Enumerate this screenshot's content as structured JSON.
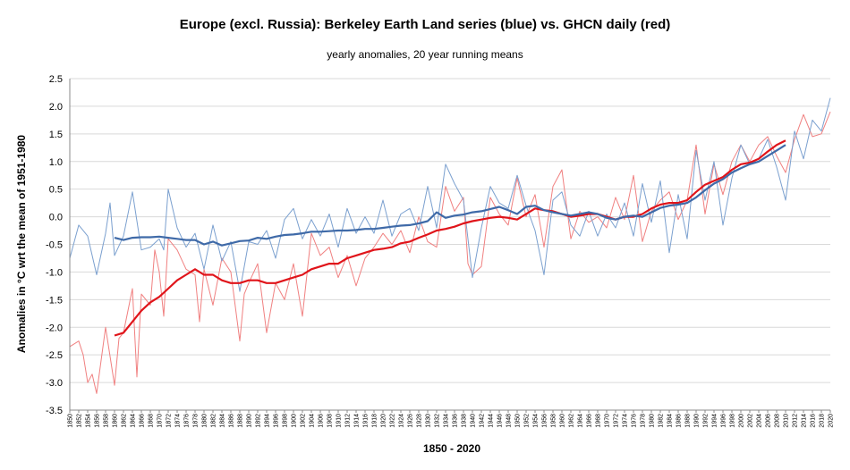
{
  "chart_data": {
    "type": "line",
    "title": "Europe (excl. Russia): Berkeley Earth Land series (blue) vs. GHCN daily (red)",
    "subtitle": "yearly anomalies, 20 year running means",
    "xlabel": "1850 - 2020",
    "ylabel": "Anomalies in °C wrt the mean of 1951-1980",
    "xlim": [
      1850,
      2020
    ],
    "ylim": [
      -3.5,
      2.5
    ],
    "ytick_step": 0.5,
    "ytick_labels": [
      "2.5",
      "2.0",
      "1.5",
      "1.0",
      "0.5",
      "0.0",
      "-0.5",
      "-1.0",
      "-1.5",
      "-2.0",
      "-2.5",
      "-3.0",
      "-3.5"
    ],
    "xtick_labels": [
      "1850",
      "1852",
      "1854",
      "1856",
      "1858",
      "1860",
      "1862",
      "1864",
      "1866",
      "1868",
      "1870",
      "1872",
      "1874",
      "1876",
      "1878",
      "1880",
      "1882",
      "1884",
      "1886",
      "1888",
      "1890",
      "1892",
      "1894",
      "1896",
      "1898",
      "1900",
      "1902",
      "1904",
      "1906",
      "1908",
      "1910",
      "1912",
      "1914",
      "1916",
      "1918",
      "1920",
      "1922",
      "1924",
      "1926",
      "1928",
      "1930",
      "1932",
      "1934",
      "1936",
      "1938",
      "1940",
      "1942",
      "1944",
      "1946",
      "1948",
      "1950",
      "1952",
      "1954",
      "1956",
      "1958",
      "1960",
      "1962",
      "1964",
      "1966",
      "1968",
      "1970",
      "1972",
      "1974",
      "1976",
      "1978",
      "1980",
      "1982",
      "1984",
      "1986",
      "1988",
      "1990",
      "1992",
      "1994",
      "1996",
      "1998",
      "2000",
      "2002",
      "2004",
      "2006",
      "2008",
      "2010",
      "2012",
      "2014",
      "2016",
      "2018",
      "2020"
    ],
    "grid": "horizontal",
    "colors": {
      "blue_yearly": "#7ba0cf",
      "blue_running": "#3f6aa8",
      "red_yearly": "#f08080",
      "red_running": "#e0141a",
      "grid": "#d9d9d9",
      "axis": "#888888"
    },
    "series": [
      {
        "x": [
          1850,
          1852,
          1854,
          1856,
          1858,
          1859,
          1860,
          1862,
          1864,
          1866,
          1868,
          1870,
          1871,
          1872,
          1874,
          1876,
          1878,
          1880,
          1882,
          1884,
          1886,
          1888,
          1890,
          1892,
          1894,
          1896,
          1898,
          1900,
          1902,
          1904,
          1906,
          1908,
          1910,
          1912,
          1914,
          1916,
          1918,
          1920,
          1922,
          1924,
          1926,
          1928,
          1930,
          1932,
          1934,
          1936,
          1938,
          1940,
          1942,
          1944,
          1946,
          1948,
          1950,
          1952,
          1954,
          1956,
          1958,
          1960,
          1962,
          1964,
          1966,
          1968,
          1970,
          1972,
          1974,
          1976,
          1978,
          1980,
          1982,
          1984,
          1986,
          1988,
          1990,
          1992,
          1994,
          1996,
          1998,
          2000,
          2002,
          2004,
          2006,
          2008,
          2010,
          2012,
          2014,
          2016,
          2018,
          2020
        ],
        "values": [
          -0.75,
          -0.15,
          -0.35,
          -1.05,
          -0.3,
          0.25,
          -0.7,
          -0.35,
          0.45,
          -0.6,
          -0.55,
          -0.4,
          -0.6,
          0.5,
          -0.2,
          -0.55,
          -0.3,
          -0.95,
          -0.15,
          -0.8,
          -0.45,
          -1.35,
          -0.45,
          -0.5,
          -0.25,
          -0.75,
          -0.05,
          0.15,
          -0.4,
          -0.05,
          -0.35,
          0.05,
          -0.55,
          0.15,
          -0.3,
          0.0,
          -0.3,
          0.3,
          -0.35,
          0.05,
          0.15,
          -0.25,
          0.55,
          -0.2,
          0.95,
          0.6,
          0.3,
          -1.1,
          -0.2,
          0.55,
          0.25,
          0.15,
          0.75,
          0.2,
          -0.25,
          -1.05,
          0.3,
          0.45,
          -0.15,
          -0.35,
          0.1,
          -0.35,
          0.05,
          -0.2,
          0.25,
          -0.35,
          0.6,
          -0.1,
          0.65,
          -0.65,
          0.4,
          -0.4,
          1.2,
          0.3,
          1.0,
          -0.15,
          0.7,
          1.3,
          0.95,
          1.05,
          1.4,
          0.9,
          0.3,
          1.55,
          1.05,
          1.75,
          1.55,
          2.15
        ]
      },
      {
        "x": [
          1860,
          1862,
          1864,
          1866,
          1868,
          1870,
          1872,
          1874,
          1876,
          1878,
          1880,
          1882,
          1884,
          1886,
          1888,
          1890,
          1892,
          1894,
          1896,
          1898,
          1900,
          1902,
          1904,
          1906,
          1908,
          1910,
          1912,
          1914,
          1916,
          1918,
          1920,
          1922,
          1924,
          1926,
          1928,
          1930,
          1932,
          1934,
          1936,
          1938,
          1940,
          1942,
          1944,
          1946,
          1948,
          1950,
          1952,
          1954,
          1956,
          1958,
          1960,
          1962,
          1964,
          1966,
          1968,
          1970,
          1972,
          1974,
          1976,
          1978,
          1980,
          1982,
          1984,
          1986,
          1988,
          1990,
          1992,
          1994,
          1996,
          1998,
          2000,
          2002,
          2004,
          2006,
          2008,
          2010
        ],
        "values": [
          -0.38,
          -0.42,
          -0.38,
          -0.37,
          -0.37,
          -0.36,
          -0.38,
          -0.4,
          -0.42,
          -0.42,
          -0.5,
          -0.45,
          -0.52,
          -0.48,
          -0.44,
          -0.43,
          -0.38,
          -0.4,
          -0.36,
          -0.33,
          -0.32,
          -0.3,
          -0.27,
          -0.27,
          -0.26,
          -0.25,
          -0.25,
          -0.24,
          -0.22,
          -0.22,
          -0.2,
          -0.18,
          -0.16,
          -0.15,
          -0.12,
          -0.08,
          0.08,
          -0.02,
          0.02,
          0.04,
          0.08,
          0.1,
          0.14,
          0.18,
          0.12,
          0.05,
          0.18,
          0.2,
          0.12,
          0.08,
          0.05,
          0.02,
          0.05,
          0.08,
          0.05,
          -0.02,
          -0.05,
          0.0,
          0.02,
          0.0,
          0.08,
          0.16,
          0.2,
          0.22,
          0.25,
          0.35,
          0.48,
          0.6,
          0.68,
          0.8,
          0.88,
          0.95,
          1.0,
          1.1,
          1.2,
          1.3
        ]
      },
      {
        "x": [
          1850,
          1852,
          1853,
          1854,
          1855,
          1856,
          1858,
          1860,
          1861,
          1862,
          1864,
          1865,
          1866,
          1868,
          1869,
          1870,
          1871,
          1872,
          1874,
          1876,
          1878,
          1879,
          1880,
          1882,
          1884,
          1886,
          1888,
          1889,
          1890,
          1892,
          1894,
          1896,
          1898,
          1900,
          1902,
          1904,
          1906,
          1908,
          1910,
          1912,
          1914,
          1916,
          1918,
          1920,
          1922,
          1924,
          1926,
          1928,
          1930,
          1932,
          1934,
          1936,
          1938,
          1939,
          1940,
          1942,
          1944,
          1946,
          1948,
          1950,
          1952,
          1954,
          1956,
          1958,
          1960,
          1962,
          1964,
          1966,
          1968,
          1970,
          1972,
          1974,
          1976,
          1978,
          1980,
          1982,
          1984,
          1986,
          1988,
          1990,
          1992,
          1994,
          1996,
          1998,
          2000,
          2002,
          2004,
          2006,
          2008,
          2010,
          2012,
          2014,
          2016,
          2018,
          2020
        ],
        "values": [
          -2.35,
          -2.25,
          -2.5,
          -3.0,
          -2.85,
          -3.2,
          -2.0,
          -3.05,
          -2.2,
          -2.1,
          -1.3,
          -2.9,
          -1.4,
          -1.6,
          -0.6,
          -1.0,
          -1.8,
          -0.4,
          -0.6,
          -0.95,
          -1.05,
          -1.9,
          -0.95,
          -1.6,
          -0.75,
          -1.0,
          -2.25,
          -1.4,
          -1.2,
          -0.85,
          -2.1,
          -1.2,
          -1.5,
          -0.85,
          -1.8,
          -0.3,
          -0.7,
          -0.55,
          -1.1,
          -0.7,
          -1.25,
          -0.75,
          -0.55,
          -0.3,
          -0.5,
          -0.25,
          -0.65,
          0.0,
          -0.45,
          -0.55,
          0.55,
          0.1,
          0.35,
          -0.85,
          -1.05,
          -0.9,
          0.35,
          0.05,
          -0.15,
          0.7,
          0.0,
          0.4,
          -0.55,
          0.55,
          0.85,
          -0.4,
          0.1,
          -0.1,
          0.0,
          -0.2,
          0.35,
          -0.05,
          0.75,
          -0.45,
          0.1,
          0.3,
          0.45,
          -0.05,
          0.3,
          1.3,
          0.05,
          0.95,
          0.4,
          1.0,
          1.3,
          1.0,
          1.3,
          1.45,
          1.1,
          0.8,
          1.4,
          1.85,
          1.45,
          1.5,
          1.9
        ]
      },
      {
        "x": [
          1860,
          1862,
          1864,
          1866,
          1868,
          1870,
          1872,
          1874,
          1876,
          1878,
          1880,
          1882,
          1884,
          1886,
          1888,
          1890,
          1892,
          1894,
          1896,
          1898,
          1900,
          1902,
          1904,
          1906,
          1908,
          1910,
          1912,
          1914,
          1916,
          1918,
          1920,
          1922,
          1924,
          1926,
          1928,
          1930,
          1932,
          1934,
          1936,
          1938,
          1940,
          1942,
          1944,
          1946,
          1948,
          1950,
          1952,
          1954,
          1956,
          1958,
          1960,
          1962,
          1964,
          1966,
          1968,
          1970,
          1972,
          1974,
          1976,
          1978,
          1980,
          1982,
          1984,
          1986,
          1988,
          1990,
          1992,
          1994,
          1996,
          1998,
          2000,
          2002,
          2004,
          2006,
          2008,
          2010
        ],
        "values": [
          -2.15,
          -2.1,
          -1.9,
          -1.7,
          -1.55,
          -1.45,
          -1.3,
          -1.15,
          -1.05,
          -0.95,
          -1.05,
          -1.05,
          -1.15,
          -1.2,
          -1.2,
          -1.15,
          -1.15,
          -1.2,
          -1.2,
          -1.15,
          -1.1,
          -1.05,
          -0.95,
          -0.9,
          -0.85,
          -0.85,
          -0.75,
          -0.7,
          -0.65,
          -0.6,
          -0.58,
          -0.55,
          -0.48,
          -0.45,
          -0.38,
          -0.32,
          -0.25,
          -0.22,
          -0.18,
          -0.12,
          -0.08,
          -0.05,
          -0.02,
          0.0,
          -0.02,
          -0.05,
          0.05,
          0.15,
          0.12,
          0.1,
          0.05,
          0.0,
          0.02,
          0.05,
          0.05,
          0.0,
          -0.05,
          0.0,
          0.0,
          0.05,
          0.15,
          0.22,
          0.25,
          0.25,
          0.3,
          0.45,
          0.58,
          0.65,
          0.72,
          0.85,
          0.95,
          0.98,
          1.05,
          1.18,
          1.3,
          1.38
        ]
      }
    ]
  }
}
